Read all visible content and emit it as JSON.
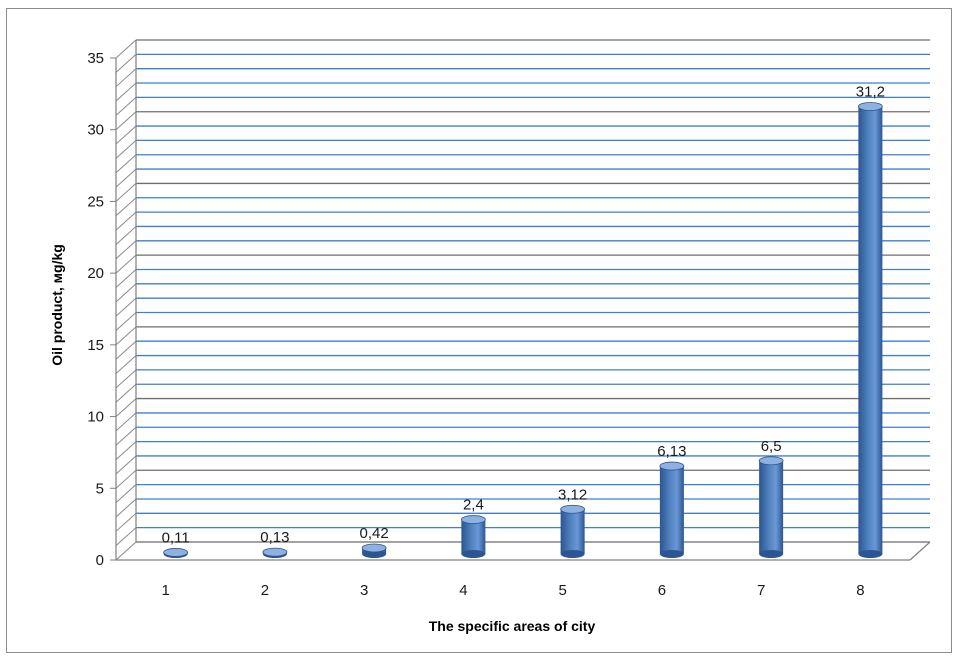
{
  "colors": {
    "bar": "#4f81bd",
    "bar_dark": "#2c5591",
    "bar_top": "#8fb1e0",
    "gridline": "#3d7fd6",
    "axis": "#808080"
  },
  "chart_data": {
    "type": "bar",
    "title": "",
    "xlabel": "The specific areas of  city",
    "ylabel": "Oil  product, мg/kg",
    "categories": [
      "1",
      "2",
      "3",
      "4",
      "5",
      "6",
      "7",
      "8"
    ],
    "values": [
      0.11,
      0.13,
      0.42,
      2.4,
      3.12,
      6.13,
      6.5,
      31.2
    ],
    "data_labels": [
      "0,11",
      "0,13",
      "0,42",
      "2,4",
      "3,12",
      "6,13",
      "6,5",
      "31,2"
    ],
    "ylim": [
      0,
      35
    ],
    "yticks": [
      0,
      5,
      10,
      15,
      20,
      25,
      30,
      35
    ],
    "grid": true,
    "minor_grid_step": 1,
    "legend": "none"
  }
}
